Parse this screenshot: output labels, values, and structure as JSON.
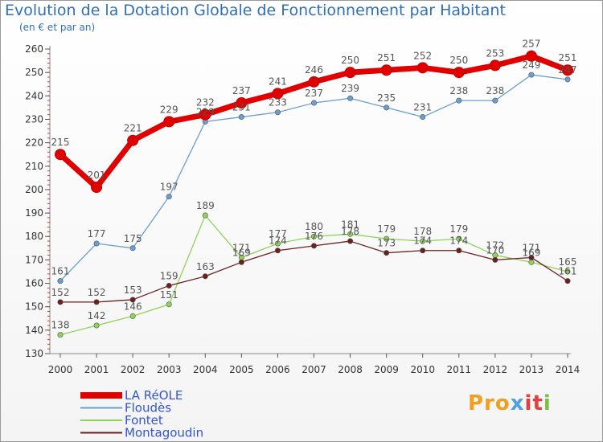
{
  "chart_data": {
    "type": "line",
    "title": "Evolution de la Dotation Globale de Fonctionnement par Habitant",
    "subtitle": "(en € et par an)",
    "x": [
      "2000",
      "2001",
      "2002",
      "2003",
      "2004",
      "2005",
      "2006",
      "2007",
      "2008",
      "2009",
      "2010",
      "2011",
      "2012",
      "2013",
      "2014"
    ],
    "ylim": [
      130,
      260
    ],
    "yticks": [
      130,
      140,
      150,
      160,
      170,
      180,
      190,
      200,
      210,
      220,
      230,
      240,
      250,
      260
    ],
    "series": [
      {
        "name": "LA RéOLE",
        "color": "#e00000",
        "values": [
          215,
          201,
          221,
          229,
          232,
          237,
          241,
          246,
          250,
          251,
          252,
          250,
          253,
          257,
          251
        ]
      },
      {
        "name": "Floudès",
        "color": "#6a9fd0",
        "values": [
          161,
          177,
          175,
          197,
          229,
          231,
          233,
          237,
          239,
          235,
          231,
          238,
          238,
          249,
          247
        ]
      },
      {
        "name": "Fontet",
        "color": "#8fd35a",
        "values": [
          138,
          142,
          146,
          151,
          189,
          171,
          177,
          180,
          181,
          179,
          178,
          179,
          172,
          169,
          165
        ]
      },
      {
        "name": "Montagoudin",
        "color": "#6b1f1f",
        "values": [
          152,
          152,
          153,
          159,
          163,
          169,
          174,
          176,
          178,
          173,
          174,
          174,
          170,
          171,
          161
        ]
      }
    ],
    "legend_position": "bottom-left",
    "grid": false
  },
  "branding": {
    "logo_parts": [
      "Pro",
      "x",
      "it",
      "i"
    ]
  }
}
